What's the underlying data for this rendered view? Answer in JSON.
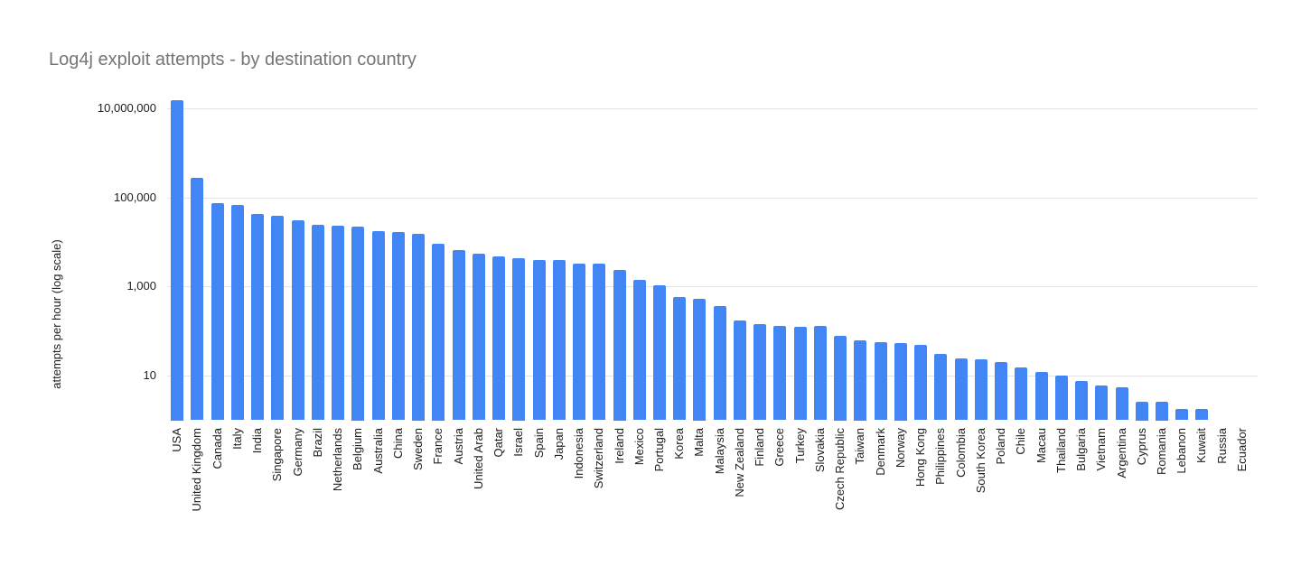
{
  "chart_data": {
    "type": "bar",
    "title": "Log4j exploit attempts - by destination country",
    "ylabel": "attempts per hour (log scale)",
    "y_scale": "log",
    "grid": true,
    "legend": "none",
    "ylim": [
      1,
      20000000
    ],
    "y_ticks": [
      {
        "label": "10,000,000",
        "value": 10000000
      },
      {
        "label": "100,000",
        "value": 100000
      },
      {
        "label": "1,000",
        "value": 1000
      },
      {
        "label": "10",
        "value": 10
      }
    ],
    "categories": [
      "USA",
      "United Kingdom",
      "Canada",
      "Italy",
      "India",
      "Singapore",
      "Germany",
      "Brazil",
      "Netherlands",
      "Belgium",
      "Australia",
      "China",
      "Sweden",
      "France",
      "Austria",
      "United Arab",
      "Qatar",
      "Israel",
      "Spain",
      "Japan",
      "Indonesia",
      "Switzerland",
      "Ireland",
      "Mexico",
      "Portugal",
      "Korea",
      "Malta",
      "Malaysia",
      "New Zealand",
      "Finland",
      "Greece",
      "Turkey",
      "Slovakia",
      "Czech Republic",
      "Taiwan",
      "Denmark",
      "Norway",
      "Hong Kong",
      "Philippines",
      "Colombia",
      "South Korea",
      "Poland",
      "Chile",
      "Macau",
      "Thailand",
      "Bulgaria",
      "Vietnam",
      "Argentina",
      "Cyprus",
      "Romania",
      "Lebanon",
      "Kuwait",
      "Russia",
      "Ecuador"
    ],
    "values": [
      15000000,
      270000,
      75000,
      68000,
      42000,
      38000,
      30000,
      24000,
      23500,
      22000,
      17500,
      16500,
      15500,
      9300,
      6600,
      5400,
      4700,
      4400,
      4000,
      4000,
      3300,
      3300,
      2400,
      1400,
      1050,
      570,
      540,
      360,
      170,
      145,
      130,
      122,
      128,
      78,
      62,
      56,
      55,
      50,
      31,
      24,
      23,
      20,
      15,
      12,
      10,
      7.5,
      6,
      5.5,
      2.6,
      2.6,
      1.8,
      1.8,
      1,
      1
    ],
    "colors": {
      "bar": "#4285f4",
      "title_text": "#757575",
      "axis_text": "#202020",
      "gridline": "#e4e4e4",
      "background": "#ffffff"
    }
  }
}
